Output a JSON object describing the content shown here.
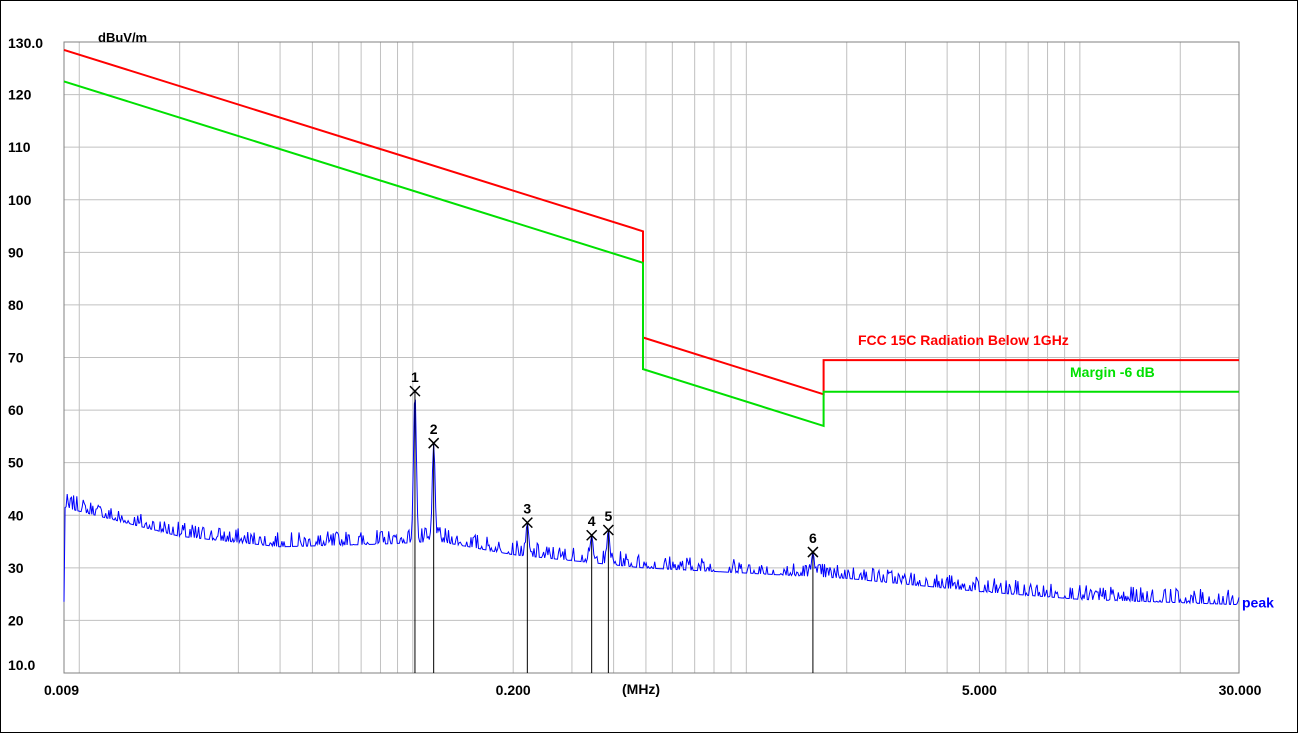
{
  "chart_data": {
    "type": "line",
    "ylabel": "dBuV/m",
    "xunit": "(MHz)",
    "xscale": "log",
    "xlim": [
      0.009,
      30.0
    ],
    "ylim": [
      10.0,
      130.0
    ],
    "grid": true,
    "x_tick_labels": [
      {
        "value": 0.009,
        "label": "0.009"
      },
      {
        "value": 0.2,
        "label": "0.200"
      },
      {
        "value": 5.0,
        "label": "5.000"
      },
      {
        "value": 30.0,
        "label": "30.000"
      }
    ],
    "y_tick_labels": [
      {
        "value": 130,
        "label": "130.0"
      },
      {
        "value": 120,
        "label": "120"
      },
      {
        "value": 110,
        "label": "110"
      },
      {
        "value": 100,
        "label": "100"
      },
      {
        "value": 90,
        "label": "90"
      },
      {
        "value": 80,
        "label": "80"
      },
      {
        "value": 70,
        "label": "70"
      },
      {
        "value": 60,
        "label": "60"
      },
      {
        "value": 50,
        "label": "50"
      },
      {
        "value": 40,
        "label": "40"
      },
      {
        "value": 30,
        "label": "30"
      },
      {
        "value": 20,
        "label": "20"
      },
      {
        "value": 10,
        "label": "10.0"
      }
    ],
    "series": [
      {
        "name": "FCC  15C Radiation Below 1GHz",
        "color": "#ff0000",
        "points": [
          [
            0.009,
            128.5
          ],
          [
            0.49,
            94.0
          ],
          [
            0.49,
            73.8
          ],
          [
            1.705,
            63.0
          ],
          [
            1.705,
            69.5
          ],
          [
            30.0,
            69.5
          ]
        ]
      },
      {
        "name": "Margin -6 dB",
        "color": "#00e000",
        "points": [
          [
            0.009,
            122.5
          ],
          [
            0.49,
            88.0
          ],
          [
            0.49,
            67.8
          ],
          [
            1.705,
            57.0
          ],
          [
            1.705,
            63.5
          ],
          [
            30.0,
            63.5
          ]
        ]
      },
      {
        "name": "peak",
        "color": "#0000ff",
        "noise_profile": [
          [
            0.009,
            41.5
          ],
          [
            0.02,
            36
          ],
          [
            0.04,
            34
          ],
          [
            0.08,
            34.5
          ],
          [
            0.12,
            35
          ],
          [
            0.2,
            32.5
          ],
          [
            0.49,
            30
          ],
          [
            1.0,
            29
          ],
          [
            2.0,
            28
          ],
          [
            5.0,
            25.5
          ],
          [
            10.0,
            24
          ],
          [
            30.0,
            23
          ]
        ]
      }
    ],
    "markers": [
      {
        "label": "1",
        "freq": 0.1015,
        "level": 63.6
      },
      {
        "label": "2",
        "freq": 0.1155,
        "level": 53.7
      },
      {
        "label": "3",
        "freq": 0.2205,
        "level": 38.6
      },
      {
        "label": "4",
        "freq": 0.3438,
        "level": 36.2
      },
      {
        "label": "5",
        "freq": 0.3858,
        "level": 37.2
      },
      {
        "label": "6",
        "freq": 1.5835,
        "level": 33.0
      }
    ]
  }
}
